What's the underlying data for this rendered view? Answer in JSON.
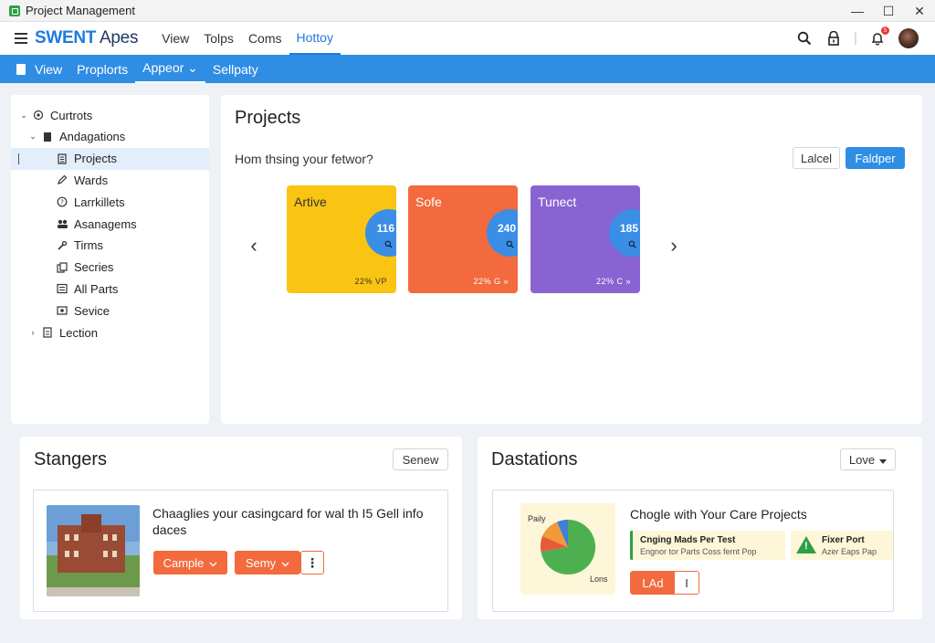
{
  "window": {
    "title": "Project Management",
    "controls": [
      "—",
      "☐",
      "✕"
    ]
  },
  "app": {
    "brand_bold": "SWENT",
    "brand_rest": " Apes"
  },
  "top_nav": [
    {
      "label": "View"
    },
    {
      "label": "Tolps"
    },
    {
      "label": "Coms"
    },
    {
      "label": "Hottoy",
      "active": true
    }
  ],
  "header_icons": [
    "search-icon",
    "lock-icon",
    "bell-icon",
    "avatar"
  ],
  "notification_badge": "5",
  "toolbar": [
    {
      "label": "View"
    },
    {
      "label": "Proplorts"
    },
    {
      "label": "Appeor ⌄",
      "active": true
    },
    {
      "label": "Sellpaty"
    }
  ],
  "sidebar": {
    "items": [
      {
        "label": "Curtrots",
        "caret": "⌄",
        "icon": "gear-icon",
        "level": 0
      },
      {
        "label": "Andagations",
        "caret": "⌄",
        "icon": "document-icon",
        "level": 1
      },
      {
        "label": "Projects",
        "caret": "",
        "icon": "clipboard-icon",
        "level": 2,
        "selected": true
      },
      {
        "label": "Wards",
        "caret": "",
        "icon": "pencil-icon",
        "level": 2
      },
      {
        "label": "Larrkillets",
        "caret": "",
        "icon": "help-icon",
        "level": 2
      },
      {
        "label": "Asanagems",
        "caret": "",
        "icon": "people-icon",
        "level": 2
      },
      {
        "label": "Tirms",
        "caret": "",
        "icon": "wrench-icon",
        "level": 2
      },
      {
        "label": "Secries",
        "caret": "",
        "icon": "copy-icon",
        "level": 2
      },
      {
        "label": "All Parts",
        "caret": "",
        "icon": "list-icon",
        "level": 2
      },
      {
        "label": "Sevice",
        "caret": "",
        "icon": "service-icon",
        "level": 2
      },
      {
        "label": "Lection",
        "caret": "›",
        "icon": "file-icon",
        "level": 1
      }
    ]
  },
  "projects": {
    "title": "Projects",
    "question": "Hom thsing your fetwor?",
    "cancel_label": "Lalcel",
    "primary_label": "Faldper",
    "cards": [
      {
        "title": "Artive",
        "value": "116",
        "footer": "22% VP",
        "color": "#f9c412",
        "light_text": false
      },
      {
        "title": "Sofe",
        "value": "240",
        "footer": "22% G »",
        "color": "#f26a3d",
        "light_text": true
      },
      {
        "title": "Tunect",
        "value": "185",
        "footer": "22% C »",
        "color": "#8a63d2",
        "light_text": true
      }
    ],
    "prev_arrow": "‹",
    "next_arrow": "›"
  },
  "strangers": {
    "title": "Stangers",
    "action_label": "Senew",
    "description": "Chaaglies your casingcard for wal th I5 Gell info daces",
    "buttons": [
      {
        "label": "Cample"
      },
      {
        "label": "Semy"
      }
    ],
    "more_label": "⋮"
  },
  "dashboards": {
    "title": "Dastations",
    "dropdown_label": "Love",
    "subtitle": "Chogle with Your Care Projects",
    "pie_labels": {
      "top": "Paily",
      "bottom": "Lons"
    },
    "pie_colors": [
      "#4caf50",
      "#e95a3a",
      "#f09a3a",
      "#3f7fd6"
    ],
    "alerts": [
      {
        "title": "Cnging Mads Per Test",
        "sub": "Engnor tor Parts Coss fernt Pop"
      },
      {
        "title": "Fixer Port",
        "sub": "Azer Eaps Pap",
        "icon_mark": "!"
      }
    ],
    "split_main": "LAd",
    "split_side": "I"
  }
}
